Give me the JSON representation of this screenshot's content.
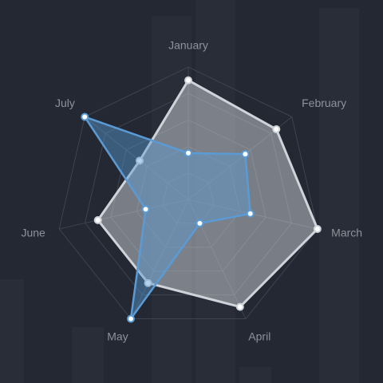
{
  "chart_data": {
    "type": "radar",
    "categories": [
      "January",
      "February",
      "March",
      "April",
      "May",
      "June",
      "July"
    ],
    "series": [
      {
        "values": [
          90,
          85,
          100,
          90,
          70,
          70,
          47
        ],
        "color": "#cfd3da"
      },
      {
        "values": [
          35,
          55,
          48,
          20,
          100,
          33,
          100
        ],
        "color": "#5b9bd5"
      }
    ],
    "rmax": 100,
    "grid_levels": 5,
    "background_bars": true
  },
  "colors": {
    "background": "#232833",
    "grid": "#3e4450",
    "label": "#8d929b",
    "series_a": "#cfd3da",
    "series_b": "#5b9bd5"
  }
}
